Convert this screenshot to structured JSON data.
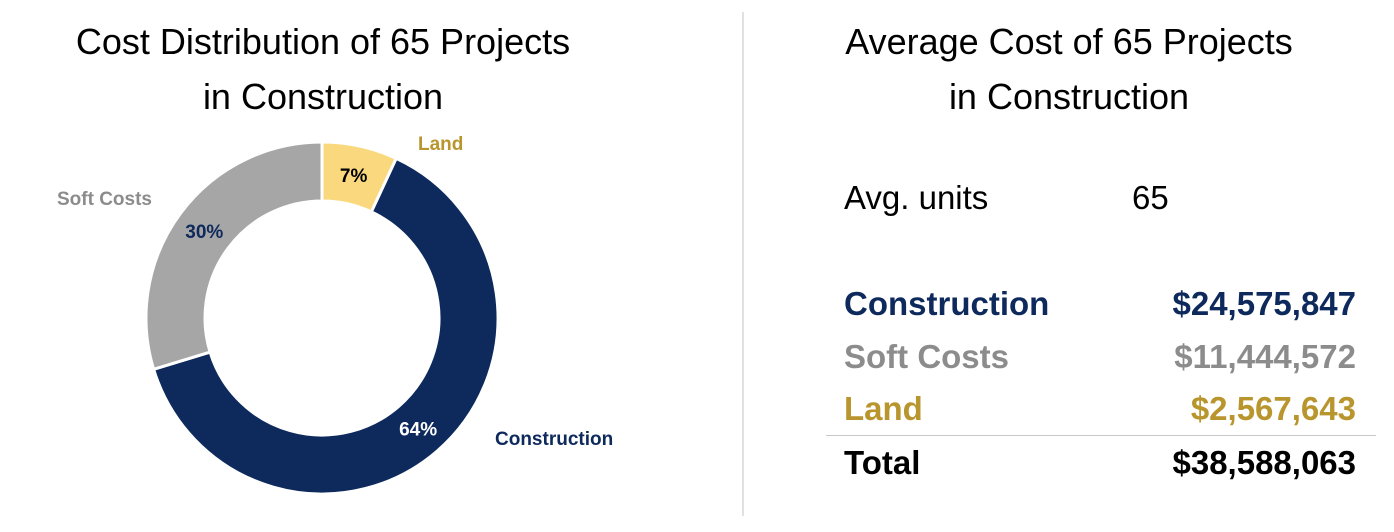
{
  "chart_data": {
    "type": "pie",
    "style": "donut",
    "title_lines": [
      "Cost Distribution of 65 Projects",
      "in Construction"
    ],
    "slices": [
      {
        "name": "Land",
        "value": 7,
        "label": "7%",
        "color": "#fad97e",
        "label_color": "#b9952e"
      },
      {
        "name": "Construction",
        "value": 64,
        "label": "64%",
        "color": "#0e2a5c",
        "label_color": "#0e2a5c"
      },
      {
        "name": "Soft Costs",
        "value": 30,
        "label": "30%",
        "color": "#a6a6a6",
        "label_color": "#8c8c8c"
      }
    ],
    "percent_label_colors": {
      "Land": "#000000",
      "Construction": "#ffffff",
      "Soft Costs": "#0e2a5c"
    }
  },
  "table": {
    "title_lines": [
      "Average Cost of 65 Projects",
      "in Construction"
    ],
    "units": {
      "label": "Avg. units",
      "value": "65"
    },
    "rows": [
      {
        "label": "Construction",
        "value": "$24,575,847",
        "color": "#0e2a5c"
      },
      {
        "label": "Soft Costs",
        "value": "$11,444,572",
        "color": "#8c8c8c"
      },
      {
        "label": "Land",
        "value": "$2,567,643",
        "color": "#b9952e"
      }
    ],
    "total": {
      "label": "Total",
      "value": "$38,588,063"
    }
  }
}
